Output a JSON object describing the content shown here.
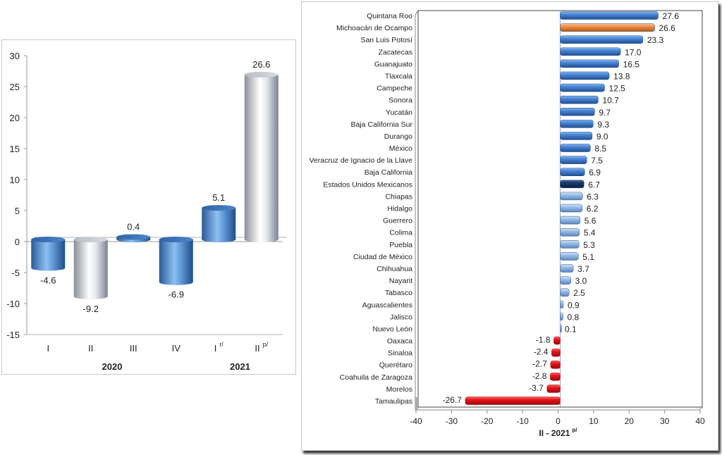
{
  "chart_data": [
    {
      "type": "bar",
      "style": "3d-cylinder",
      "title": "",
      "xlabel": "",
      "ylabel": "",
      "ylim": [
        -15,
        30
      ],
      "yticks": [
        30,
        25,
        20,
        15,
        10,
        5,
        0,
        -5,
        -10,
        -15
      ],
      "ytick_labels": [
        "30",
        "25",
        "20",
        "15",
        "10",
        "5",
        "0",
        "-5",
        "-10",
        "-15"
      ],
      "categories": [
        {
          "label": "I",
          "sup": ""
        },
        {
          "label": "II",
          "sup": ""
        },
        {
          "label": "III",
          "sup": ""
        },
        {
          "label": "IV",
          "sup": ""
        },
        {
          "label": "I",
          "sup": "r/"
        },
        {
          "label": "II",
          "sup": "p/"
        }
      ],
      "values": [
        -4.6,
        -9.2,
        0.4,
        -6.9,
        5.1,
        26.6
      ],
      "value_labels": [
        "-4.6",
        "-9.2",
        "0.4",
        "-6.9",
        "5.1",
        "26.6"
      ],
      "bar_colors": [
        "#3f77bd",
        "#c9cdd4",
        "#3f77bd",
        "#3f77bd",
        "#3f77bd",
        "#c9cdd4"
      ],
      "groups": [
        {
          "label": "2020",
          "span": [
            0,
            3
          ]
        },
        {
          "label": "2021",
          "span": [
            4,
            5
          ]
        }
      ],
      "grid": false,
      "legend": "none"
    },
    {
      "type": "bar",
      "orientation": "horizontal",
      "style": "3d-cylinder",
      "title": "",
      "xlabel": "II - 2021",
      "xlabel_sup": "p/",
      "xlim": [
        -40,
        40
      ],
      "xticks": [
        -40,
        -30,
        -20,
        -10,
        0,
        10,
        20,
        30,
        40
      ],
      "xtick_labels": [
        "-40",
        "-30",
        "-20",
        "-10",
        "0",
        "10",
        "20",
        "30",
        "40"
      ],
      "categories": [
        "Quintana Roo",
        "Michoacán de Ocampo",
        "San Luis Potosí",
        "Zacatecas",
        "Guanajuato",
        "Tlaxcala",
        "Campeche",
        "Sonora",
        "Yucatán",
        "Baja California Sur",
        "Durango",
        "México",
        "Veracruz de Ignacio de la Llave",
        "Baja California",
        "Estados Unidos Mexicanos",
        "Chiapas",
        "Hidalgo",
        "Guerrero",
        "Colima",
        "Puebla",
        "Ciudad de México",
        "Chihuahua",
        "Nayarit",
        "Tabasco",
        "Aguascalientes",
        "Jalisco",
        "Nuevo León",
        "Oaxaca",
        "Sinaloa",
        "Querétaro",
        "Coahuila de Zaragoza",
        "Morelos",
        "Tamaulipas"
      ],
      "values": [
        27.6,
        26.6,
        23.3,
        17.0,
        16.5,
        13.8,
        12.5,
        10.7,
        9.7,
        9.3,
        9.0,
        8.5,
        7.5,
        6.9,
        6.7,
        6.3,
        6.2,
        5.6,
        5.4,
        5.3,
        5.1,
        3.7,
        3.0,
        2.5,
        0.9,
        0.8,
        0.1,
        -1.8,
        -2.4,
        -2.7,
        -2.8,
        -3.7,
        -26.7
      ],
      "value_labels": [
        "27.6",
        "26.6",
        "23.3",
        "17.0",
        "16.5",
        "13.8",
        "12.5",
        "10.7",
        "9.7",
        "9.3",
        "9.0",
        "8.5",
        "7.5",
        "6.9",
        "6.7",
        "6.3",
        "6.2",
        "5.6",
        "5.4",
        "5.3",
        "5.1",
        "3.7",
        "3.0",
        "2.5",
        "0.9",
        "0.8",
        "0.1",
        "-1.8",
        "-2.4",
        "-2.7",
        "-2.8",
        "-3.7",
        "-26.7"
      ],
      "highlight": {
        "Michoacán de Ocampo": "orange",
        "Estados Unidos Mexicanos": "navy"
      },
      "colors": {
        "above_national": "#4a86d8",
        "highlight_state": "#f0924a",
        "national": "#163a6a",
        "below_national": "#9cc0ea",
        "negative": "#e8141a"
      },
      "grid": false,
      "legend": "none"
    }
  ]
}
